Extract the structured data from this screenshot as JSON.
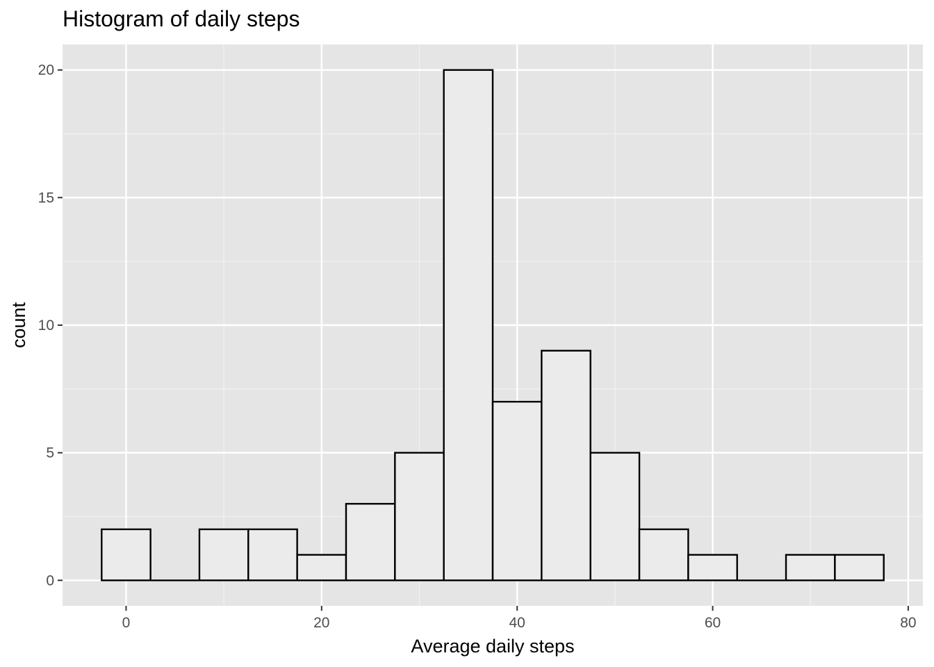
{
  "chart_data": {
    "type": "bar",
    "title": "Histogram of daily steps",
    "xlabel": "Average daily steps",
    "ylabel": "count",
    "bins": [
      {
        "start": -2.5,
        "end": 2.5,
        "count": 2
      },
      {
        "start": 2.5,
        "end": 7.5,
        "count": 0
      },
      {
        "start": 7.5,
        "end": 12.5,
        "count": 2
      },
      {
        "start": 12.5,
        "end": 17.5,
        "count": 2
      },
      {
        "start": 17.5,
        "end": 22.5,
        "count": 1
      },
      {
        "start": 22.5,
        "end": 27.5,
        "count": 3
      },
      {
        "start": 27.5,
        "end": 32.5,
        "count": 5
      },
      {
        "start": 32.5,
        "end": 37.5,
        "count": 20
      },
      {
        "start": 37.5,
        "end": 42.5,
        "count": 7
      },
      {
        "start": 42.5,
        "end": 47.5,
        "count": 9
      },
      {
        "start": 47.5,
        "end": 52.5,
        "count": 5
      },
      {
        "start": 52.5,
        "end": 57.5,
        "count": 2
      },
      {
        "start": 57.5,
        "end": 62.5,
        "count": 1
      },
      {
        "start": 62.5,
        "end": 67.5,
        "count": 0
      },
      {
        "start": 67.5,
        "end": 72.5,
        "count": 1
      },
      {
        "start": 72.5,
        "end": 77.5,
        "count": 1
      }
    ],
    "xlim": [
      -6.5,
      81.5
    ],
    "ylim": [
      -1,
      21
    ],
    "xticks": [
      0,
      20,
      40,
      60,
      80
    ],
    "xtick_labels": [
      "0",
      "20",
      "40",
      "60",
      "80"
    ],
    "yticks": [
      0,
      5,
      10,
      15,
      20
    ],
    "ytick_labels": [
      "0",
      "5",
      "10",
      "15",
      "20"
    ],
    "x_minor_gridlines": [
      10,
      30,
      50,
      70
    ],
    "y_minor_gridlines": [
      2.5,
      7.5,
      12.5,
      17.5
    ],
    "grid": true,
    "colors": {
      "panel_background": "#e5e5e5",
      "grid_major": "#ffffff",
      "grid_minor": "#f2f2f2",
      "bar_fill": "#ebebeb",
      "bar_stroke": "#000000",
      "tick_mark": "#333333"
    }
  }
}
